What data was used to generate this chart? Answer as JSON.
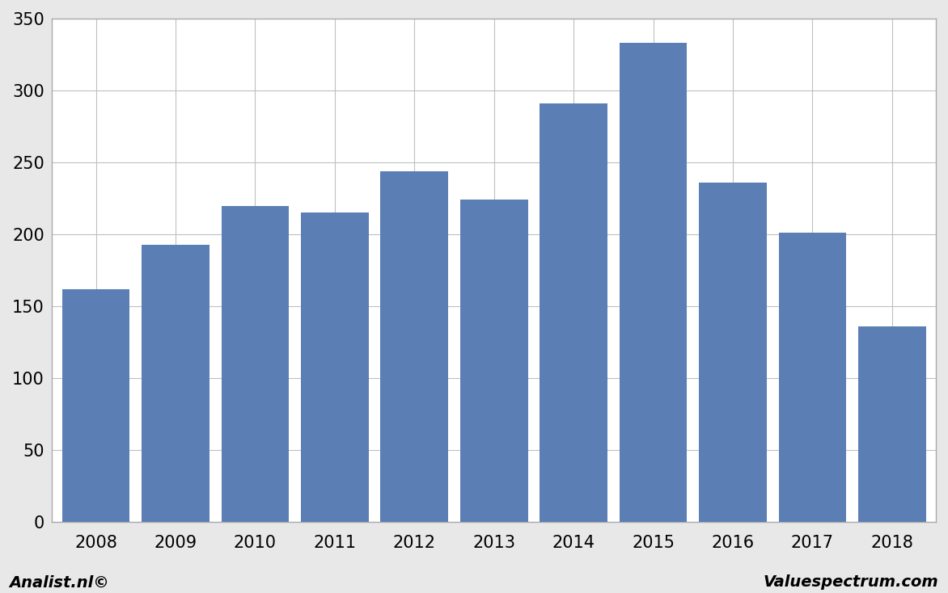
{
  "categories": [
    "2008",
    "2009",
    "2010",
    "2011",
    "2012",
    "2013",
    "2014",
    "2015",
    "2016",
    "2017",
    "2018"
  ],
  "values": [
    162,
    193,
    220,
    215,
    244,
    224,
    291,
    333,
    236,
    201,
    136
  ],
  "bar_color": "#5b7fb5",
  "background_color": "#e8e8e8",
  "plot_bg_color": "#ffffff",
  "ylim": [
    0,
    350
  ],
  "yticks": [
    0,
    50,
    100,
    150,
    200,
    250,
    300,
    350
  ],
  "footer_left": "Analist.nl©",
  "footer_right": "Valuespectrum.com",
  "footer_fontsize": 14,
  "tick_fontsize": 15,
  "bar_width": 0.85
}
